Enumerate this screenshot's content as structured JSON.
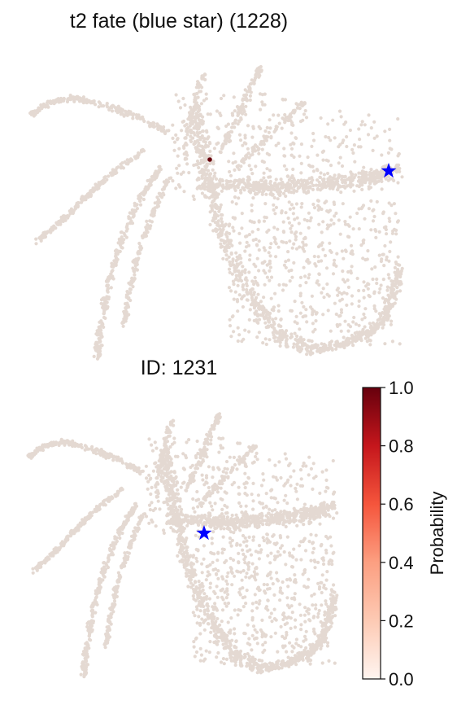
{
  "chart_data": [
    {
      "type": "scatter",
      "title": "t2 fate (blue star) (1228)",
      "point_color": "#e4d9d2",
      "highlight_color": "#67000d",
      "highlight_probability": 1.0,
      "marker": {
        "shape": "star",
        "color": "#0000ff"
      }
    },
    {
      "type": "scatter",
      "title": "ID: 1231",
      "point_color": "#e4d9d2",
      "marker": {
        "shape": "star",
        "color": "#0000ff"
      }
    }
  ],
  "colorbar": {
    "label": "Probability",
    "colormap": "Reds",
    "range": [
      0.0,
      1.0
    ],
    "ticks": [
      "0.0",
      "0.2",
      "0.4",
      "0.6",
      "0.8",
      "1.0"
    ]
  }
}
